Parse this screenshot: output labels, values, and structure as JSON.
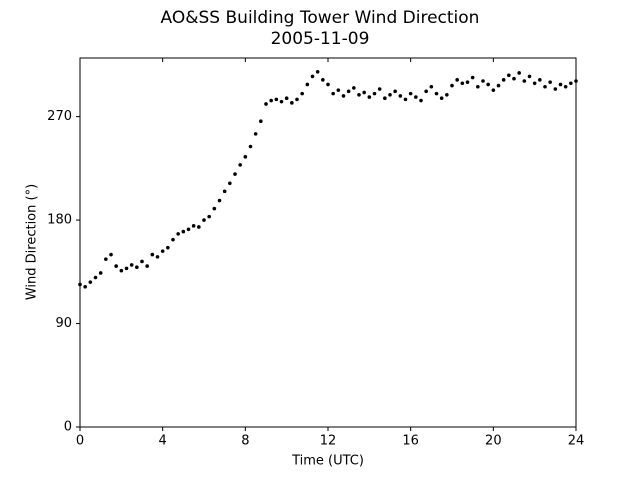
{
  "chart_data": {
    "type": "scatter",
    "title": "AO&SS Building Tower Wind Direction",
    "subtitle": "2005-11-09",
    "x_label": "Time (UTC)",
    "y_label": "Wind Direction (°)",
    "color": "#000000",
    "xlim": [
      0,
      24
    ],
    "xticks": [
      0,
      4,
      8,
      12,
      16,
      20,
      24
    ],
    "ylim": [
      0,
      321
    ],
    "yticks": [
      0,
      90,
      180,
      270
    ],
    "x": [
      0,
      0.25,
      0.5,
      0.75,
      1,
      1.25,
      1.5,
      1.75,
      2,
      2.25,
      2.5,
      2.75,
      3,
      3.25,
      3.5,
      3.75,
      4,
      4.25,
      4.5,
      4.75,
      5,
      5.25,
      5.5,
      5.75,
      6,
      6.25,
      6.5,
      6.75,
      7,
      7.25,
      7.5,
      7.75,
      8,
      8.25,
      8.5,
      8.75,
      9,
      9.25,
      9.5,
      9.75,
      10,
      10.25,
      10.5,
      10.75,
      11,
      11.25,
      11.5,
      11.75,
      12,
      12.25,
      12.5,
      12.75,
      13,
      13.25,
      13.5,
      13.75,
      14,
      14.25,
      14.5,
      14.75,
      15,
      15.25,
      15.5,
      15.75,
      16,
      16.25,
      16.5,
      16.75,
      17,
      17.25,
      17.5,
      17.75,
      18,
      18.25,
      18.5,
      18.75,
      19,
      19.25,
      19.5,
      19.75,
      20,
      20.25,
      20.5,
      20.75,
      21,
      21.25,
      21.5,
      21.75,
      22,
      22.25,
      22.5,
      22.75,
      23,
      23.25,
      23.5,
      23.75,
      24
    ],
    "values": [
      124,
      122,
      126,
      130,
      134,
      146,
      150,
      140,
      136,
      138,
      141,
      139,
      144,
      140,
      150,
      148,
      153,
      156,
      163,
      168,
      170,
      172,
      175,
      174,
      180,
      183,
      190,
      197,
      205,
      212,
      220,
      228,
      235,
      244,
      255,
      266,
      281,
      284,
      285,
      283,
      286,
      282,
      285,
      290,
      298,
      305,
      309,
      302,
      298,
      290,
      293,
      288,
      292,
      295,
      289,
      291,
      287,
      290,
      294,
      286,
      289,
      292,
      288,
      285,
      290,
      287,
      284,
      292,
      296,
      290,
      286,
      289,
      297,
      302,
      299,
      300,
      304,
      296,
      301,
      298,
      293,
      297,
      302,
      306,
      303,
      308,
      301,
      305,
      299,
      302,
      296,
      300,
      294,
      298,
      296,
      299,
      301
    ]
  }
}
